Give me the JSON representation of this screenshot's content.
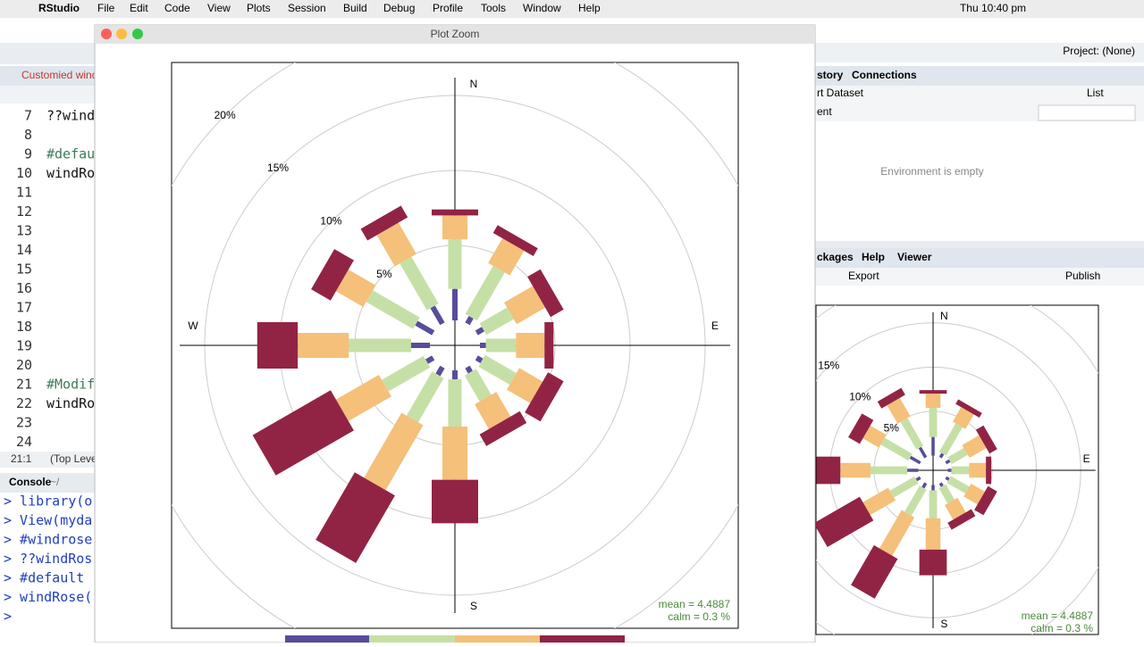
{
  "menubar": {
    "app": "RStudio",
    "menus": [
      "File",
      "Edit",
      "Code",
      "View",
      "Plots",
      "Session",
      "Build",
      "Debug",
      "Profile",
      "Tools",
      "Window",
      "Help"
    ],
    "clock": "Thu 10:40 pm"
  },
  "plot_window": {
    "title": "Plot Zoom"
  },
  "editor": {
    "tab": "Customied windr",
    "lines": [
      {
        "n": "7",
        "code": "??wind"
      },
      {
        "n": "8"
      },
      {
        "n": "9",
        "code": "#defau",
        "comment": true
      },
      {
        "n": "10",
        "code": "windRo"
      },
      {
        "n": "11"
      },
      {
        "n": "12"
      },
      {
        "n": "13"
      },
      {
        "n": "14"
      },
      {
        "n": "15"
      },
      {
        "n": "16"
      },
      {
        "n": "17"
      },
      {
        "n": "18"
      },
      {
        "n": "19"
      },
      {
        "n": "20"
      },
      {
        "n": "21",
        "code": "#Modif",
        "comment": true
      },
      {
        "n": "22",
        "code": "windRo"
      },
      {
        "n": "23"
      },
      {
        "n": "24"
      }
    ],
    "position": "21:1",
    "scope": "(Top Level)"
  },
  "console": {
    "title": "Console",
    "path": "~/",
    "lines": [
      "> library(o",
      "> View(myda",
      "> #windrose",
      "> ??windRos",
      "> #default",
      "> windRose(",
      ">"
    ]
  },
  "right_pane": {
    "project": "Project: (None)",
    "env_tabs": [
      "story",
      "Connections"
    ],
    "import": "rt Dataset",
    "view": "List",
    "env_menu": "ent",
    "empty": "Environment is empty",
    "files_tabs": [
      "ckages",
      "Help",
      "Viewer"
    ],
    "export": "Export",
    "publish": "Publish"
  },
  "windrose": {
    "compass": [
      "N",
      "E",
      "S",
      "W"
    ],
    "rings": [
      {
        "value": 5,
        "label": "5%"
      },
      {
        "value": 10,
        "label": "10%"
      },
      {
        "value": 15,
        "label": "15%"
      },
      {
        "value": 20,
        "label": "20%"
      }
    ],
    "series": [
      {
        "color": "#574d9c",
        "values": [
          2.1,
          0.5,
          0.5,
          0.4,
          0.4,
          0.4,
          0.6,
          0.6,
          0.5,
          1.25,
          1.3,
          1.3
        ]
      },
      {
        "color": "#c5e0a6",
        "values": [
          3.3,
          3.7,
          2.1,
          2.0,
          2.4,
          2.0,
          3.15,
          3.4,
          3.2,
          4.15,
          3.6,
          3.6
        ]
      },
      {
        "color": "#f4c07a",
        "values": [
          1.6,
          1.9,
          2.2,
          1.9,
          1.8,
          1.9,
          3.55,
          5.0,
          3.3,
          3.4,
          2.1,
          2.4
        ]
      },
      {
        "color": "#912444",
        "values": [
          0.4,
          0.6,
          1.0,
          0.6,
          1.2,
          0.9,
          2.9,
          5.2,
          6.0,
          2.7,
          1.5,
          0.9
        ]
      }
    ],
    "mean": "mean  =  4.4887",
    "calm": "calm  =  0.3 %"
  }
}
